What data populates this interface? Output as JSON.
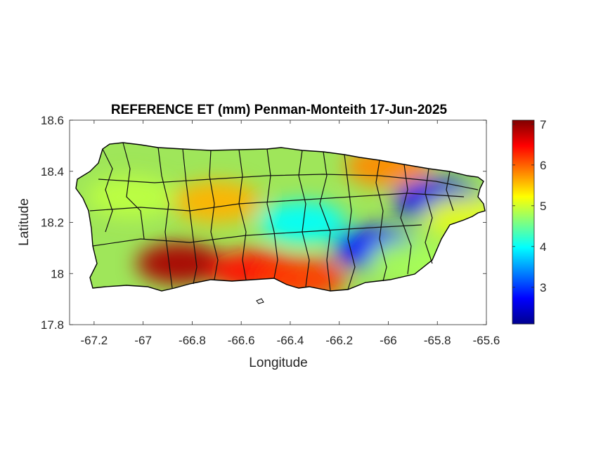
{
  "title": "REFERENCE ET (mm) Penman-Monteith 17-Jun-2025",
  "x_axis": {
    "label": "Longitude",
    "range": [
      -67.3,
      -65.6
    ],
    "ticks": [
      -67.2,
      -67,
      -66.8,
      -66.6,
      -66.4,
      -66.2,
      -66,
      -65.8,
      -65.6
    ],
    "tick_labels": [
      "-67.2",
      "-67",
      "-66.8",
      "-66.6",
      "-66.4",
      "-66.2",
      "-66",
      "-65.8",
      "-65.6"
    ]
  },
  "y_axis": {
    "label": "Latitude",
    "range": [
      17.8,
      18.6
    ],
    "ticks": [
      17.8,
      18,
      18.2,
      18.4,
      18.6
    ],
    "tick_labels": [
      "17.8",
      "18",
      "18.2",
      "18.4",
      "18.6"
    ]
  },
  "colorbar": {
    "colormap": "jet",
    "range": [
      2.1,
      7.1
    ],
    "ticks": [
      3,
      4,
      5,
      6,
      7
    ],
    "tick_labels": [
      "3",
      "4",
      "5",
      "6",
      "7"
    ],
    "colors": [
      "#00008f",
      "#0000ff",
      "#00ffff",
      "#ffff00",
      "#ff0000",
      "#800000"
    ]
  },
  "map": {
    "region": "Puerto Rico",
    "boundary_color": "#000000",
    "value_regions": [
      {
        "name": "southwest-coast-high",
        "lon": -66.85,
        "lat": 18.04,
        "value": 6.9
      },
      {
        "name": "south-central-high",
        "lon": -66.55,
        "lat": 18.01,
        "value": 6.4
      },
      {
        "name": "southeast-coast-warm",
        "lon": -66.35,
        "lat": 17.98,
        "value": 6.2
      },
      {
        "name": "northeast-coast-warm",
        "lon": -66.0,
        "lat": 18.42,
        "value": 5.8
      },
      {
        "name": "north-central-warm",
        "lon": -66.7,
        "lat": 18.28,
        "value": 5.6
      },
      {
        "name": "west-interior",
        "lon": -67.05,
        "lat": 18.3,
        "value": 4.9
      },
      {
        "name": "central-cool",
        "lon": -66.35,
        "lat": 18.2,
        "value": 4.0
      },
      {
        "name": "east-interior-low",
        "lon": -66.05,
        "lat": 18.1,
        "value": 2.8
      },
      {
        "name": "el-yunque-low",
        "lon": -65.8,
        "lat": 18.29,
        "value": 2.6
      },
      {
        "name": "southeast-mid",
        "lon": -65.9,
        "lat": 18.05,
        "value": 4.8
      },
      {
        "name": "east-coast-mid",
        "lon": -65.68,
        "lat": 18.22,
        "value": 5.1
      }
    ]
  }
}
